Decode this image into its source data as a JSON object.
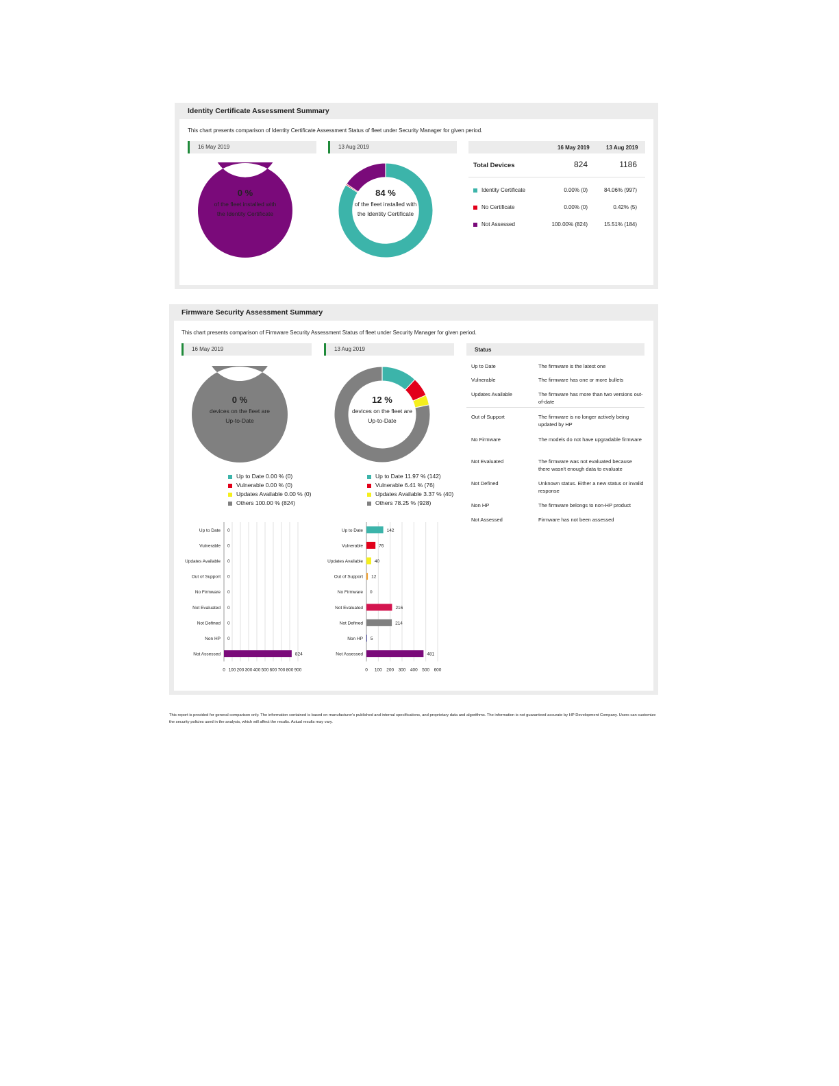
{
  "identity": {
    "title": "Identity Certificate Assessment Summary",
    "description": "This chart presents comparison of Identity Certificate Assessment Status of fleet under Security Manager for given period.",
    "date1": "16 May 2019",
    "date2": "13 Aug 2019",
    "donut1": {
      "pct": "0 %",
      "caption": "of the fleet installed with the Identity Certificate"
    },
    "donut2": {
      "pct": "84 %",
      "caption": "of the fleet installed with the Identity Certificate"
    },
    "table": {
      "col1": "16 May 2019",
      "col2": "13 Aug 2019",
      "total_label": "Total Devices",
      "total1": "824",
      "total2": "1186",
      "rows": [
        {
          "label": "Identity Certificate",
          "v1": "0.00% (0)",
          "v2": "84.06% (997)",
          "color": "#3cb4aa"
        },
        {
          "label": "No Certificate",
          "v1": "0.00% (0)",
          "v2": "0.42% (5)",
          "color": "#e2001a"
        },
        {
          "label": "Not Assessed",
          "v1": "100.00% (824)",
          "v2": "15.51% (184)",
          "color": "#7a0a7a"
        }
      ]
    }
  },
  "firmware": {
    "title": "Firmware Security Assessment Summary",
    "description": "This chart presents comparison of Firmware Security Assessment Status of fleet under Security Manager for given period.",
    "date1": "16 May 2019",
    "date2": "13 Aug 2019",
    "donut1": {
      "pct": "0 %",
      "caption": "devices on the fleet are Up-to-Date"
    },
    "donut2": {
      "pct": "12 %",
      "caption": "devices on the fleet are Up-to-Date"
    },
    "legend1": [
      {
        "label": "Up to Date",
        "value": "0.00 % (0)",
        "color": "#3cb4aa"
      },
      {
        "label": "Vulnerable",
        "value": "0.00 % (0)",
        "color": "#e2001a"
      },
      {
        "label": "Updates Available",
        "value": "0.00 % (0)",
        "color": "#f5ef1c"
      },
      {
        "label": "Others",
        "value": "100.00 % (824)",
        "color": "#808080"
      }
    ],
    "legend2": [
      {
        "label": "Up to Date",
        "value": "11.97 % (142)",
        "color": "#3cb4aa"
      },
      {
        "label": "Vulnerable",
        "value": "6.41 % (76)",
        "color": "#e2001a"
      },
      {
        "label": "Updates Available",
        "value": "3.37 % (40)",
        "color": "#f5ef1c"
      },
      {
        "label": "Others",
        "value": "78.25 % (928)",
        "color": "#808080"
      }
    ],
    "status_header": "Status",
    "status": [
      {
        "label": "Up to Date",
        "desc": "The firmware is the latest one"
      },
      {
        "label": "Vulnerable",
        "desc": "The firmware has one or more bullets"
      },
      {
        "label": "Updates Available",
        "desc": "The firmware has more than two versions out-of-date"
      },
      {
        "label": "Out of Support",
        "desc": "The firmware is no longer actively being updated by HP"
      },
      {
        "label": "No Firmware",
        "desc": "The models do not have upgradable firmware"
      },
      {
        "label": "Not Evaluated",
        "desc": "The firmware was not evaluated because there wasn't enough data to evaluate"
      },
      {
        "label": "Not Defined",
        "desc": "Unknown status. Either a new status or invalid response"
      },
      {
        "label": "Non HP",
        "desc": "The firmware belongs to non-HP product"
      },
      {
        "label": "Not Assessed",
        "desc": "Firmware has not been assessed"
      }
    ]
  },
  "footer": "This report is provided for general comparison only. The information contained is based on manufacturer's published and internal specifications, and proprietary data and algorithms. The information is not guaranteed accurate by HP Development Company. Users can customize the security policies used in the analysis, which will affect the results. Actual results may vary.",
  "chart_data": [
    {
      "type": "pie",
      "categories": [
        "Identity Certificate",
        "No Certificate",
        "Not Assessed"
      ],
      "values": [
        0,
        0,
        824
      ],
      "colors": [
        "#3cb4aa",
        "#e2001a",
        "#7a0a7a"
      ],
      "title": "16 May 2019"
    },
    {
      "type": "pie",
      "categories": [
        "Identity Certificate",
        "No Certificate",
        "Not Assessed"
      ],
      "values": [
        997,
        5,
        184
      ],
      "colors": [
        "#3cb4aa",
        "#e2001a",
        "#7a0a7a"
      ],
      "title": "13 Aug 2019"
    },
    {
      "type": "pie",
      "categories": [
        "Up to Date",
        "Vulnerable",
        "Updates Available",
        "Others"
      ],
      "values": [
        0,
        0,
        0,
        824
      ],
      "colors": [
        "#3cb4aa",
        "#e2001a",
        "#f5ef1c",
        "#808080"
      ],
      "title": "16 May 2019"
    },
    {
      "type": "pie",
      "categories": [
        "Up to Date",
        "Vulnerable",
        "Updates Available",
        "Others"
      ],
      "values": [
        142,
        76,
        40,
        928
      ],
      "colors": [
        "#3cb4aa",
        "#e2001a",
        "#f5ef1c",
        "#808080"
      ],
      "title": "13 Aug 2019"
    },
    {
      "type": "bar",
      "orientation": "horizontal",
      "categories": [
        "Up to Date",
        "Vulnerable",
        "Updates Available",
        "Out of Support",
        "No Firmware",
        "Not Evaluated",
        "Not Defined",
        "Non HP",
        "Not Assessed"
      ],
      "values": [
        0,
        0,
        0,
        0,
        0,
        0,
        0,
        0,
        824
      ],
      "colors": [
        "#3cb4aa",
        "#e2001a",
        "#f5ef1c",
        "#f0a030",
        "#888888",
        "#d4154f",
        "#808080",
        "#3a3a9a",
        "#7a0a7a"
      ],
      "xlim": [
        0,
        900
      ],
      "xticks": [
        0,
        100,
        200,
        300,
        400,
        500,
        600,
        700,
        800,
        900
      ],
      "grid": true
    },
    {
      "type": "bar",
      "orientation": "horizontal",
      "categories": [
        "Up to Date",
        "Vulnerable",
        "Updates Available",
        "Out of Support",
        "No Firmware",
        "Not Evaluated",
        "Not Defined",
        "Non HP",
        "Not Assessed"
      ],
      "values": [
        142,
        76,
        40,
        12,
        0,
        216,
        214,
        5,
        481
      ],
      "colors": [
        "#3cb4aa",
        "#e2001a",
        "#f5ef1c",
        "#f0a030",
        "#888888",
        "#d4154f",
        "#808080",
        "#3a3a9a",
        "#7a0a7a"
      ],
      "xlim": [
        0,
        600
      ],
      "xticks": [
        0,
        100,
        200,
        300,
        400,
        500,
        600
      ],
      "grid": true
    }
  ]
}
